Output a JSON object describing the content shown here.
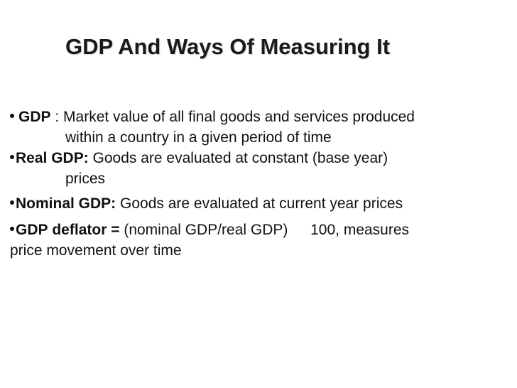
{
  "slide": {
    "title": "GDP And Ways Of Measuring It",
    "bullets": [
      {
        "term": "GDP",
        "separator": " : ",
        "line1_text": "Market value of all final goods and services produced",
        "line2_text": "within a country in a given period of time"
      },
      {
        "term": "Real GDP:",
        "line1_text": " Goods are evaluated at constant (base year)",
        "line2_text": "prices"
      },
      {
        "term": "Nominal GDP:",
        "line1_text": " Goods are evaluated at current year prices"
      },
      {
        "term_words": [
          "GDP",
          "deflator",
          "="
        ],
        "line1_words": [
          "(nominal",
          "GDP/real",
          "GDP)",
          "100,",
          "measures"
        ],
        "line2_text": "price movement over time"
      }
    ]
  }
}
